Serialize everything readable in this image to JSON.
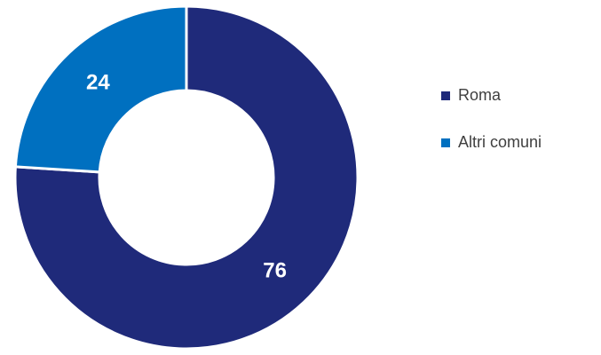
{
  "chart_data": {
    "type": "pie",
    "donut": true,
    "categories": [
      "Roma",
      "Altri comuni"
    ],
    "values": [
      76,
      24
    ],
    "colors": [
      "#1f2a7a",
      "#0070c0"
    ],
    "legend": "right"
  }
}
